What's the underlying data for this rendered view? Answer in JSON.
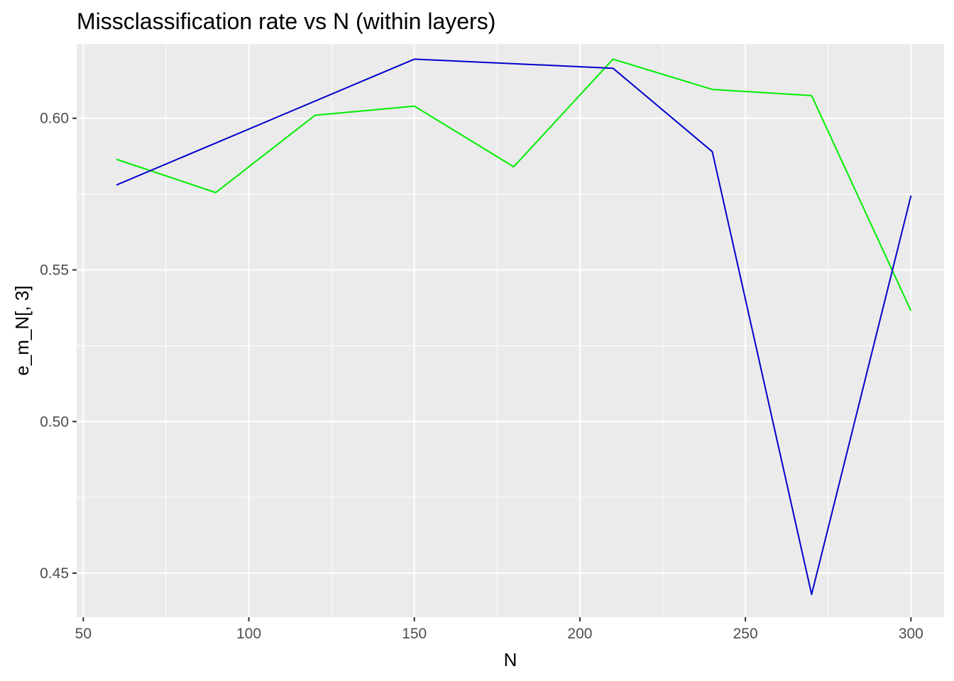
{
  "chart_data": {
    "type": "line",
    "title": "Missclassification rate vs N (within layers)",
    "xlabel": "N",
    "ylabel": "e_m_N[, 3]",
    "xlim": [
      48,
      310
    ],
    "ylim": [
      0.4355,
      0.6245
    ],
    "x_ticks": [
      50,
      100,
      150,
      200,
      250,
      300
    ],
    "x_tick_labels": [
      "50",
      "100",
      "150",
      "200",
      "250",
      "300"
    ],
    "x_minor_ticks": [
      75,
      125,
      175,
      225,
      275
    ],
    "y_ticks": [
      0.45,
      0.5,
      0.55,
      0.6
    ],
    "y_tick_labels": [
      "0.45",
      "0.50",
      "0.55",
      "0.60"
    ],
    "y_minor_ticks": [
      0.475,
      0.525,
      0.575
    ],
    "x": [
      60,
      90,
      120,
      150,
      180,
      210,
      240,
      270,
      300
    ],
    "series": [
      {
        "color": "#00ee00",
        "values": [
          0.5865,
          0.5755,
          0.601,
          0.604,
          0.584,
          0.6195,
          0.6095,
          0.6075,
          0.5365
        ]
      },
      {
        "color": "#0000cd",
        "x": [
          60,
          150,
          210,
          240,
          270,
          300
        ],
        "values": [
          0.578,
          0.6195,
          0.6165,
          0.589,
          0.443,
          0.5745
        ]
      }
    ],
    "grid": true,
    "legend": "none",
    "panel_background": "#ebebeb",
    "grid_color": "#ffffff"
  }
}
